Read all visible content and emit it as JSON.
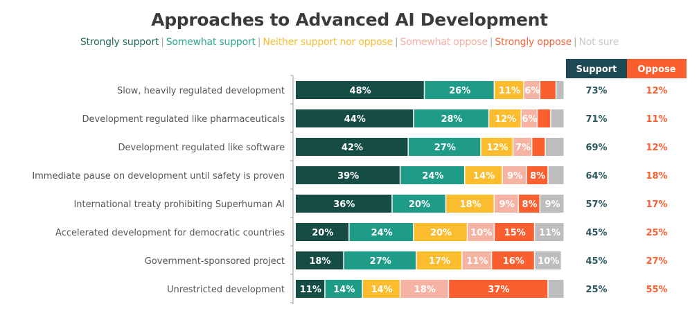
{
  "chart_data": {
    "type": "bar",
    "orientation": "horizontal",
    "stacked": true,
    "title": "Approaches to Advanced AI Development",
    "xlabel": "",
    "ylabel": "",
    "xlim": [
      0,
      100
    ],
    "unit": "%",
    "legend_position": "top",
    "categories": [
      "Slow, heavily regulated development",
      "Development regulated like pharmaceuticals",
      "Development regulated like software",
      "Immediate pause on development until safety is proven",
      "International treaty prohibiting Superhuman AI",
      "Accelerated development for democratic countries",
      "Government-sponsored project",
      "Unrestricted development"
    ],
    "series": [
      {
        "name": "Strongly support",
        "color": "#154d45",
        "values": [
          48,
          44,
          42,
          39,
          36,
          20,
          18,
          11
        ],
        "labeled": [
          true,
          true,
          true,
          true,
          true,
          true,
          true,
          true
        ]
      },
      {
        "name": "Somewhat support",
        "color": "#1f9c88",
        "values": [
          26,
          28,
          27,
          24,
          20,
          24,
          27,
          14
        ],
        "labeled": [
          true,
          true,
          true,
          true,
          true,
          true,
          true,
          true
        ]
      },
      {
        "name": "Neither support nor oppose",
        "color": "#fbbd2e",
        "values": [
          11,
          12,
          12,
          14,
          18,
          20,
          17,
          14
        ],
        "labeled": [
          true,
          true,
          true,
          true,
          true,
          true,
          true,
          true
        ]
      },
      {
        "name": "Somewhat oppose",
        "color": "#f6b3a4",
        "values": [
          6,
          6,
          7,
          9,
          9,
          10,
          11,
          18
        ],
        "labeled": [
          true,
          true,
          true,
          true,
          true,
          true,
          true,
          true
        ]
      },
      {
        "name": "Strongly oppose",
        "color": "#fc5f2f",
        "values": [
          6,
          5,
          5,
          8,
          8,
          15,
          16,
          37
        ],
        "labeled": [
          false,
          false,
          false,
          true,
          true,
          true,
          true,
          true
        ]
      },
      {
        "name": "Not sure",
        "color": "#bdbdbd",
        "values": [
          3,
          5,
          7,
          6,
          9,
          11,
          10,
          6
        ],
        "labeled": [
          false,
          false,
          false,
          false,
          true,
          true,
          true,
          false
        ]
      }
    ],
    "summary_table": {
      "headers": [
        {
          "label": "Support",
          "bg": "#1d4a55",
          "text_color": "#2a5660"
        },
        {
          "label": "Oppose",
          "bg": "#fc5f2f",
          "text_color": "#fc5f2f"
        }
      ],
      "support": [
        "73%",
        "71%",
        "69%",
        "64%",
        "57%",
        "45%",
        "45%",
        "25%"
      ],
      "oppose": [
        "12%",
        "11%",
        "12%",
        "18%",
        "17%",
        "25%",
        "27%",
        "55%"
      ]
    }
  },
  "legend_items": [
    {
      "label": "Strongly support",
      "color": "#1f6b5a"
    },
    {
      "label": "Somewhat support",
      "color": "#2aa68f"
    },
    {
      "label": "Neither support nor oppose",
      "color": "#f9bd2e"
    },
    {
      "label": "Somewhat oppose",
      "color": "#f5aea0"
    },
    {
      "label": "Strongly oppose",
      "color": "#f4643d"
    },
    {
      "label": "Not sure",
      "color": "#c8c8c8"
    }
  ]
}
